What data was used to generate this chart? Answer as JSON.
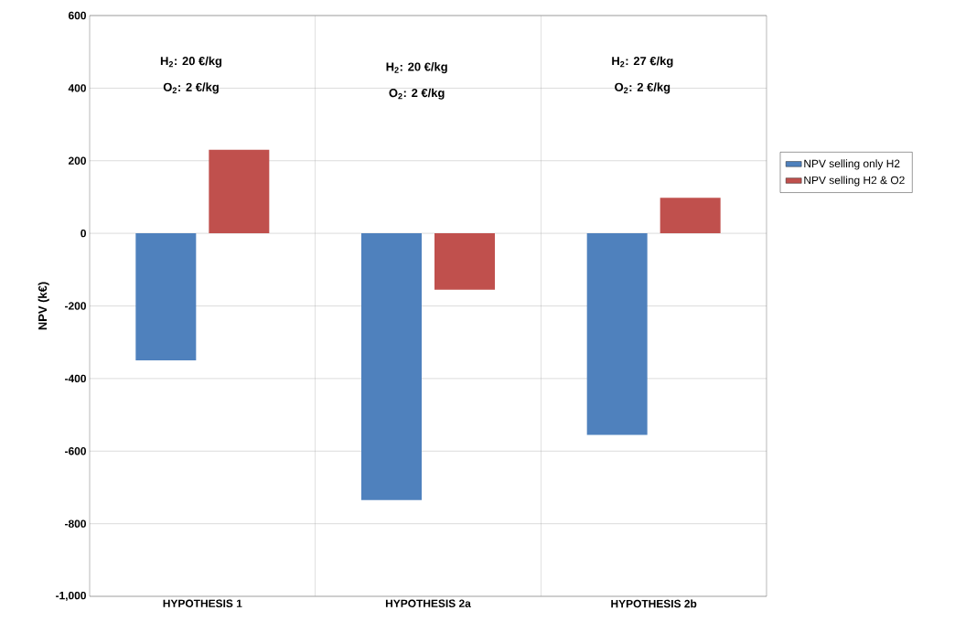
{
  "chart_data": {
    "type": "bar",
    "ylabel": "NPV (k€)",
    "categories": [
      "HYPOTHESIS 1",
      "HYPOTHESIS 2a",
      "HYPOTHESIS 2b"
    ],
    "series": [
      {
        "name": "NPV selling only H2",
        "color": "#4f81bd",
        "values": [
          -350,
          -735,
          -555
        ]
      },
      {
        "name": "NPV selling H2 & O2",
        "color": "#c0504d",
        "values": [
          230,
          -155,
          98
        ]
      }
    ],
    "ylim": [
      -1000,
      600
    ],
    "yticks": [
      {
        "value": -1000,
        "label": "-1,000"
      },
      -800,
      -600,
      -400,
      -200,
      0,
      200,
      400,
      600
    ],
    "grid": true,
    "legend": "right",
    "annotations": [
      "H$_{2}$: 20 €/kg",
      "O$_{2}$: 2 €/kg",
      "H$_{2}$: 20 €/kg",
      "O$_{2}$: 2 €/kg",
      "H$_{2}$: 27 €/kg",
      "O$_{2}$: 2 €/kg"
    ]
  }
}
